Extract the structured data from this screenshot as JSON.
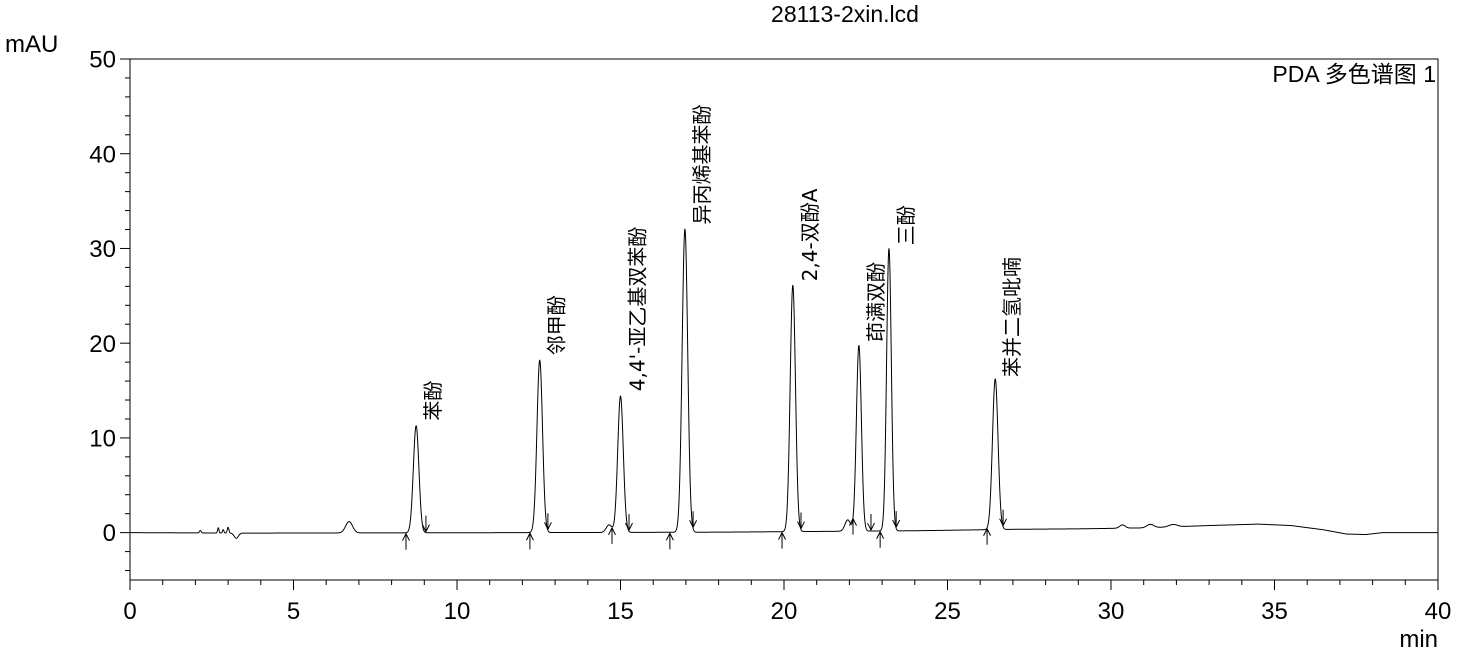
{
  "chart_data": {
    "type": "line",
    "title": "28113-2xin.lcd",
    "ylabel": "mAU",
    "xlabel": "min",
    "channel_label": "PDA 多色谱图 1",
    "xlim": [
      0,
      40
    ],
    "ylim": [
      -5,
      50
    ],
    "xticks": [
      0,
      5,
      10,
      15,
      20,
      25,
      30,
      35,
      40
    ],
    "xtick_minor_step": 1,
    "yticks": [
      0,
      10,
      20,
      30,
      40,
      50
    ],
    "ytick_minor_step": 2,
    "grid": false,
    "line_color": "#000000",
    "peaks": [
      {
        "label": "苯酚",
        "rt": 8.75,
        "height": 11.3,
        "fwhm": 0.2,
        "start": 8.44,
        "end": 9.05
      },
      {
        "label": "邻甲酚",
        "rt": 12.53,
        "height": 18.2,
        "fwhm": 0.2,
        "start": 12.23,
        "end": 12.78
      },
      {
        "label": "4,4'-亚乙基双苯酚",
        "rt": 15.0,
        "height": 14.4,
        "fwhm": 0.2,
        "start": 14.74,
        "end": 15.26
      },
      {
        "label": "异丙烯基苯酚",
        "rt": 16.97,
        "height": 32.0,
        "fwhm": 0.2,
        "start": 16.51,
        "end": 17.22
      },
      {
        "label": "2,4-双酚A",
        "rt": 20.27,
        "height": 26.0,
        "fwhm": 0.19,
        "start": 19.94,
        "end": 20.52
      },
      {
        "label": "茚满双酚",
        "rt": 22.29,
        "height": 19.6,
        "fwhm": 0.18,
        "start": 22.11,
        "end": 22.66
      },
      {
        "label": "三酚",
        "rt": 23.21,
        "height": 29.8,
        "fwhm": 0.17,
        "start": 22.94,
        "end": 23.43
      },
      {
        "label": "苯并二氢吡喃",
        "rt": 26.46,
        "height": 15.9,
        "fwhm": 0.2,
        "start": 26.21,
        "end": 26.7
      }
    ],
    "unlabeled_peaks": [
      {
        "rt": 2.15,
        "height": 0.25,
        "fwhm": 0.06
      },
      {
        "rt": 2.7,
        "height": 0.55,
        "fwhm": 0.05
      },
      {
        "rt": 2.85,
        "height": 0.35,
        "fwhm": 0.05
      },
      {
        "rt": 3.0,
        "height": 0.6,
        "fwhm": 0.06
      },
      {
        "rt": 3.25,
        "height": -0.55,
        "fwhm": 0.15
      },
      {
        "rt": 6.7,
        "height": 1.2,
        "fwhm": 0.25
      },
      {
        "rt": 14.65,
        "height": 0.8,
        "fwhm": 0.2
      },
      {
        "rt": 21.95,
        "height": 1.2,
        "fwhm": 0.2
      },
      {
        "rt": 30.35,
        "height": 0.35,
        "fwhm": 0.2
      },
      {
        "rt": 31.2,
        "height": 0.35,
        "fwhm": 0.25
      },
      {
        "rt": 31.9,
        "height": 0.25,
        "fwhm": 0.3
      }
    ],
    "baseline": [
      [
        0,
        0
      ],
      [
        3.6,
        -0.05
      ],
      [
        12,
        0.0
      ],
      [
        18,
        0.05
      ],
      [
        22,
        0.15
      ],
      [
        24,
        0.2
      ],
      [
        27,
        0.35
      ],
      [
        29,
        0.4
      ],
      [
        31,
        0.5
      ],
      [
        33,
        0.75
      ],
      [
        34.5,
        0.9
      ],
      [
        35.5,
        0.75
      ],
      [
        36.5,
        0.3
      ],
      [
        37.2,
        -0.15
      ],
      [
        37.8,
        -0.2
      ],
      [
        38.3,
        0.0
      ],
      [
        40,
        0.0
      ]
    ]
  }
}
